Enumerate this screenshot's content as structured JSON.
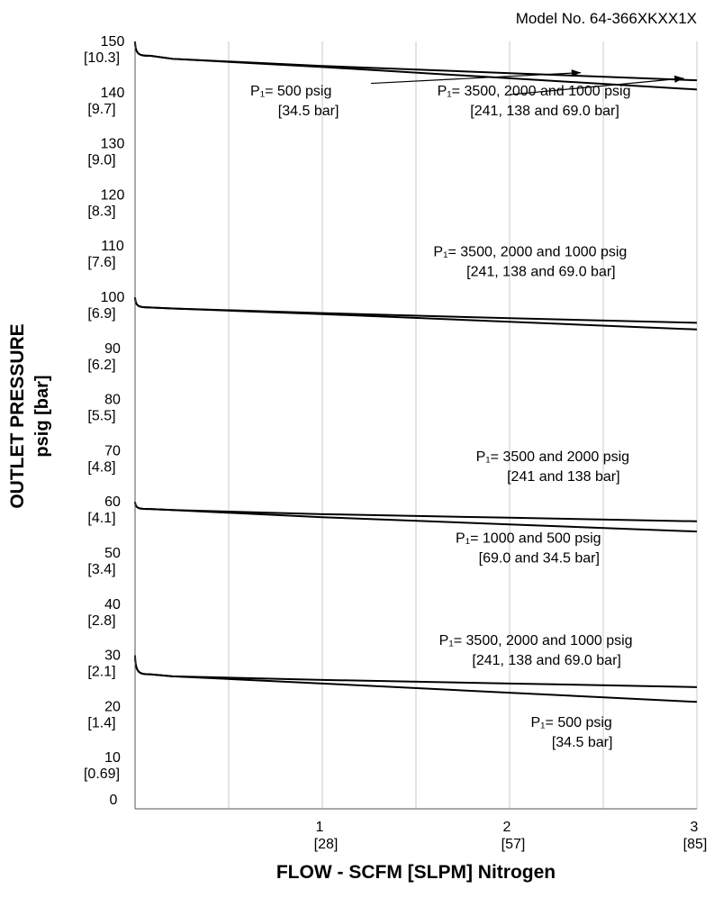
{
  "model_label": "Model No. 64-366XKXX1X",
  "chart_data": {
    "type": "line",
    "xlabel": "FLOW - SCFM [SLPM] Nitrogen",
    "ylabel_line1": "OUTLET PRESSURE",
    "ylabel_line2": "psig [bar]",
    "xlim": [
      0,
      3
    ],
    "ylim": [
      0,
      150
    ],
    "grid": true,
    "x_ticks": [
      {
        "value": 0,
        "label": "0",
        "sub": ""
      },
      {
        "value": 1,
        "label": "1",
        "sub": "[28]"
      },
      {
        "value": 2,
        "label": "2",
        "sub": "[57]"
      },
      {
        "value": 3,
        "label": "3",
        "sub": "[85]"
      }
    ],
    "y_ticks": [
      {
        "value": 150,
        "label": "150",
        "sub": "[10.3]"
      },
      {
        "value": 140,
        "label": "140",
        "sub": "[9.7]"
      },
      {
        "value": 130,
        "label": "130",
        "sub": "[9.0]"
      },
      {
        "value": 120,
        "label": "120",
        "sub": "[8.3]"
      },
      {
        "value": 110,
        "label": "110",
        "sub": "[7.6]"
      },
      {
        "value": 100,
        "label": "100",
        "sub": "[6.9]"
      },
      {
        "value": 90,
        "label": "90",
        "sub": "[6.2]"
      },
      {
        "value": 80,
        "label": "80",
        "sub": "[5.5]"
      },
      {
        "value": 70,
        "label": "70",
        "sub": "[4.8]"
      },
      {
        "value": 60,
        "label": "60",
        "sub": "[4.1]"
      },
      {
        "value": 50,
        "label": "50",
        "sub": "[3.4]"
      },
      {
        "value": 40,
        "label": "40",
        "sub": "[2.8]"
      },
      {
        "value": 30,
        "label": "30",
        "sub": "[2.1]"
      },
      {
        "value": 20,
        "label": "20",
        "sub": "[1.4]"
      },
      {
        "value": 10,
        "label": "10",
        "sub": "[0.69]"
      }
    ],
    "series": [
      {
        "x": [
          0,
          0.03,
          0.08,
          0.2,
          1,
          2,
          3
        ],
        "y": [
          150,
          148.2,
          147.2,
          146.6,
          145.2,
          143.8,
          142.4
        ]
      },
      {
        "x": [
          0,
          0.03,
          0.08,
          0.2,
          1,
          2,
          3
        ],
        "y": [
          150,
          148.2,
          147.2,
          146.6,
          145.0,
          142.8,
          140.6
        ]
      },
      {
        "x": [
          0,
          0.03,
          0.08,
          0.2,
          1,
          2,
          3
        ],
        "y": [
          100,
          98.6,
          98.0,
          97.8,
          96.9,
          95.9,
          95.0
        ]
      },
      {
        "x": [
          0,
          0.03,
          0.08,
          0.2,
          1,
          2,
          3
        ],
        "y": [
          100,
          98.6,
          98.0,
          97.8,
          96.7,
          95.2,
          93.7
        ]
      },
      {
        "x": [
          0,
          0.03,
          0.08,
          0.2,
          1,
          2,
          3
        ],
        "y": [
          60,
          58.9,
          58.6,
          58.4,
          57.6,
          56.9,
          56.2
        ]
      },
      {
        "x": [
          0,
          0.03,
          0.08,
          0.2,
          1,
          2,
          3
        ],
        "y": [
          60,
          58.9,
          58.6,
          58.4,
          57.0,
          55.6,
          54.2
        ]
      },
      {
        "x": [
          0,
          0.03,
          0.08,
          0.2,
          1,
          2,
          3
        ],
        "y": [
          30,
          27.6,
          26.3,
          25.9,
          25.2,
          24.5,
          23.8
        ]
      },
      {
        "x": [
          0,
          0.03,
          0.08,
          0.2,
          1,
          2,
          3
        ],
        "y": [
          30,
          27.6,
          26.3,
          25.9,
          24.5,
          22.7,
          20.9
        ]
      }
    ],
    "annotations": [
      {
        "line1": "P₁= 500 psig",
        "line2": "[34.5 bar]",
        "x": 1.05,
        "y": 139.4,
        "align": "right",
        "arrow_to": {
          "x": 2.38,
          "y": 143.9
        },
        "arrow_from": {
          "x": 1.26,
          "y": 141.8
        }
      },
      {
        "line1": "P₁= 3500, 2000 and 1000 psig",
        "line2": "[241, 138 and 69.0 bar]",
        "x": 2.13,
        "y": 139.4,
        "align": "center",
        "arrow_to": {
          "x": 2.93,
          "y": 142.8
        },
        "arrow_from": {
          "x": 2.0,
          "y": 139.6
        }
      },
      {
        "line1": "P₁= 3500, 2000 and 1000 psig",
        "line2": "[241, 138 and 69.0 bar]",
        "x": 2.11,
        "y": 108.0,
        "align": "center"
      },
      {
        "line1": "P₁= 3500 and 2000 psig",
        "line2": "[241 and 138 bar]",
        "x": 2.23,
        "y": 68.0,
        "align": "center"
      },
      {
        "line1": "P₁= 1000 and 500 psig",
        "line2": "[69.0 and 34.5 bar]",
        "x": 2.1,
        "y": 52.0,
        "align": "center"
      },
      {
        "line1": "P₁= 3500, 2000 and 1000 psig",
        "line2": "[241, 138 and 69.0 bar]",
        "x": 2.14,
        "y": 32.0,
        "align": "center"
      },
      {
        "line1": "P₁= 500 psig",
        "line2": "[34.5 bar]",
        "x": 2.33,
        "y": 16.0,
        "align": "center"
      }
    ]
  }
}
